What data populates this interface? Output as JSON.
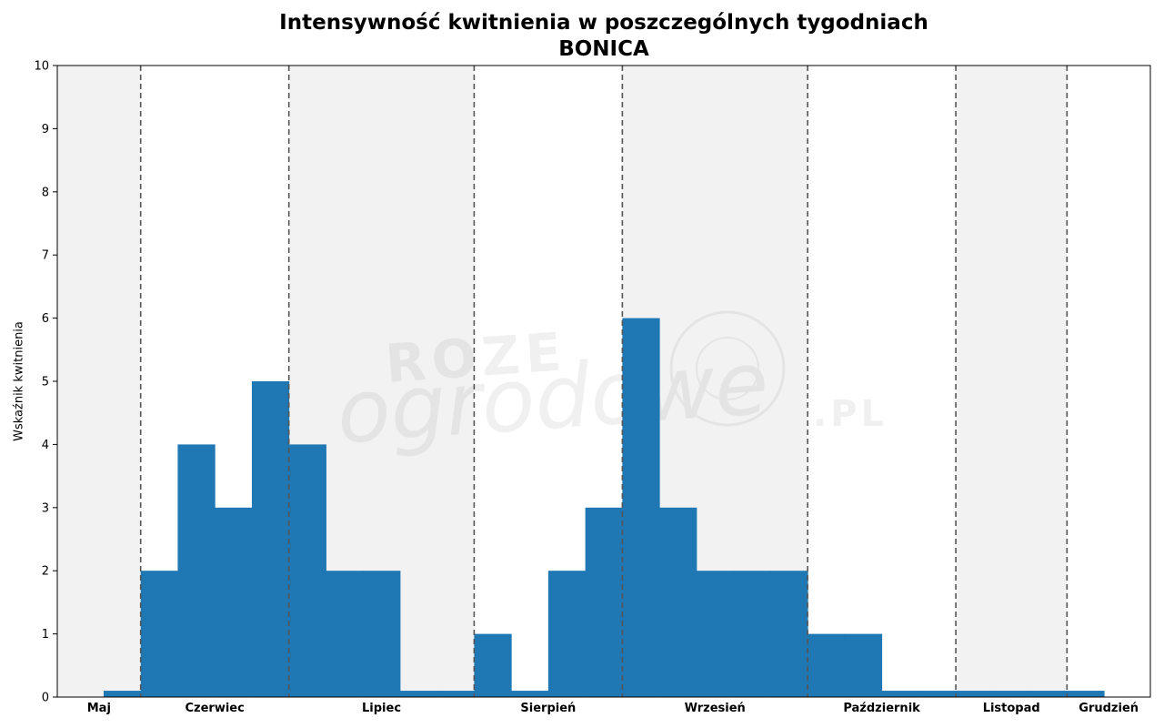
{
  "chart_data": {
    "type": "bar",
    "title": "Intensywność kwitnienia w poszczególnych tygodniach",
    "subtitle": "BONICA",
    "xlabel": "",
    "ylabel": "Wskaźnik kwitnienia",
    "ylim": [
      0,
      10
    ],
    "yticks": [
      0,
      1,
      2,
      3,
      4,
      5,
      6,
      7,
      8,
      9,
      10
    ],
    "grid": false,
    "week_values": [
      0.1,
      2,
      4,
      3,
      5,
      4,
      2,
      2,
      0.1,
      0.1,
      1,
      0.1,
      2,
      3,
      6,
      3,
      2,
      2,
      2,
      1,
      1,
      0.1,
      0.1,
      0.1,
      0.1,
      0.1,
      0.1
    ],
    "months": [
      {
        "label": "Maj",
        "shaded": true
      },
      {
        "label": "Czerwiec",
        "shaded": false
      },
      {
        "label": "Lipiec",
        "shaded": true
      },
      {
        "label": "Sierpień",
        "shaded": false
      },
      {
        "label": "Wrzesień",
        "shaded": true
      },
      {
        "label": "Październik",
        "shaded": false
      },
      {
        "label": "Listopad",
        "shaded": true
      },
      {
        "label": "Grudzień",
        "shaded": false
      }
    ],
    "watermark": "ROZE ogrodowe .PL",
    "colors": {
      "bar": "#1f77b4",
      "shade": "#f2f2f2",
      "divider": "#555555"
    }
  }
}
